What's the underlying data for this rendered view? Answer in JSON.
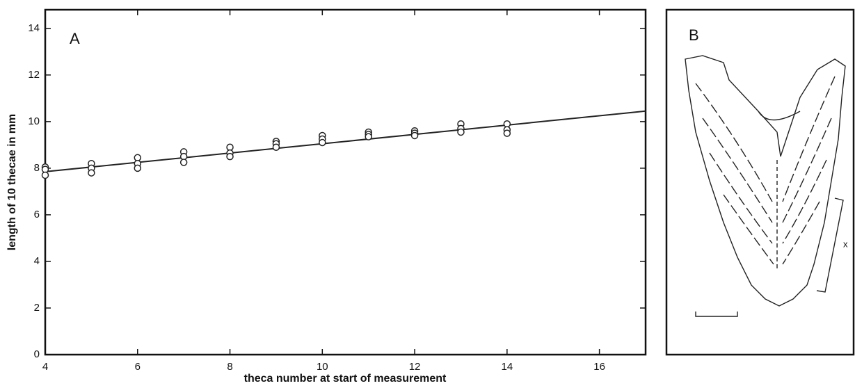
{
  "chart_data": {
    "type": "scatter",
    "panel_label": "A",
    "x_label": "theca number at start of measurement",
    "y_label": "length of 10 thecae in mm",
    "x": [
      4,
      4,
      4,
      5,
      5,
      5,
      6,
      6,
      6,
      7,
      7,
      7,
      8,
      8,
      8,
      9,
      9,
      9,
      10,
      10,
      10,
      11,
      11,
      11,
      12,
      12,
      12,
      13,
      13,
      13,
      14,
      14,
      14
    ],
    "values": [
      8.05,
      7.95,
      7.7,
      8.2,
      8.0,
      7.8,
      8.45,
      8.2,
      8.0,
      8.7,
      8.5,
      8.25,
      8.9,
      8.65,
      8.5,
      9.15,
      9.05,
      8.9,
      9.4,
      9.25,
      9.1,
      9.55,
      9.45,
      9.35,
      9.6,
      9.5,
      9.4,
      9.9,
      9.7,
      9.55,
      9.9,
      9.65,
      9.5
    ],
    "fit_line": {
      "x": [
        4,
        17
      ],
      "values": [
        7.85,
        10.45
      ]
    },
    "xlim": [
      4,
      17
    ],
    "ylim": [
      0,
      14.8
    ],
    "xticks": [
      4,
      6,
      8,
      10,
      12,
      14,
      16
    ],
    "yticks": [
      0,
      2,
      4,
      6,
      8,
      10,
      12,
      14
    ],
    "color": "#222222"
  },
  "panel_b": {
    "label": "B",
    "dimension_label": "x"
  }
}
